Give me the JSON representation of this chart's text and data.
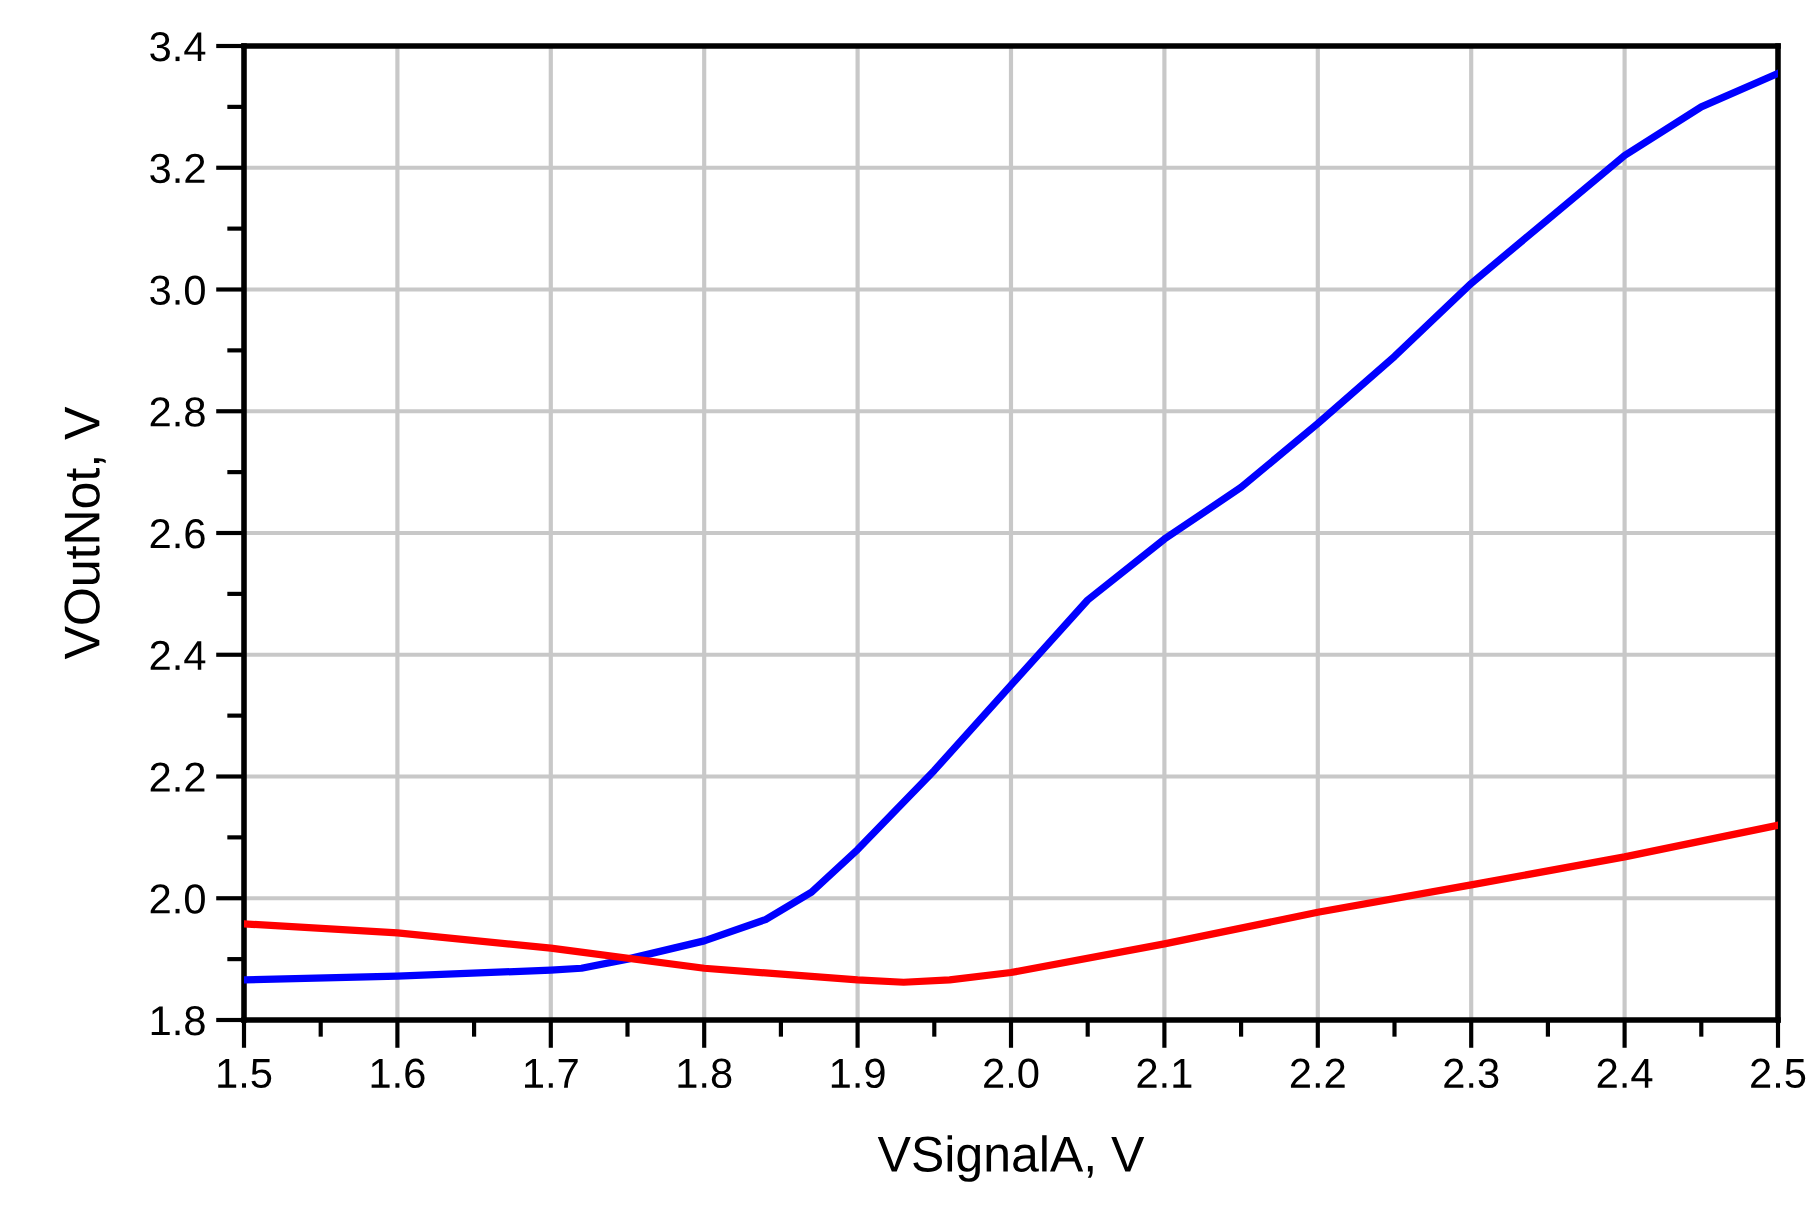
{
  "chart_data": {
    "type": "line",
    "xlabel": "VSignalA, V",
    "ylabel": "VOutNot, V",
    "xlim": [
      1.5,
      2.5
    ],
    "ylim": [
      1.8,
      3.4
    ],
    "xticks": [
      1.5,
      1.6,
      1.7,
      1.8,
      1.9,
      {
        "value": 2.0,
        "label": "2.0"
      },
      2.1,
      2.2,
      2.3,
      2.4,
      2.5
    ],
    "yticks": [
      1.8,
      {
        "value": 2.0,
        "label": "2.0"
      },
      2.2,
      2.4,
      2.6,
      2.8,
      {
        "value": 3.0,
        "label": "3.0"
      },
      3.2,
      3.4
    ],
    "grid": true,
    "legend": false,
    "marker": "none",
    "line_style": "solid",
    "series": [
      {
        "color": "#0000ff",
        "x": [
          1.5,
          1.6,
          1.7,
          1.72,
          1.75,
          1.8,
          1.84,
          1.87,
          1.9,
          1.95,
          2.0,
          2.05,
          2.1,
          2.15,
          2.2,
          2.25,
          2.3,
          2.35,
          2.4,
          2.45,
          2.5
        ],
        "values": [
          1.866,
          1.872,
          1.882,
          1.885,
          1.9,
          1.93,
          1.965,
          2.01,
          2.08,
          2.21,
          2.35,
          2.49,
          2.59,
          2.675,
          2.78,
          2.89,
          3.01,
          3.115,
          3.22,
          3.3,
          3.355
        ]
      },
      {
        "color": "#ff0000",
        "x": [
          1.5,
          1.6,
          1.7,
          1.8,
          1.9,
          1.93,
          1.96,
          2.0,
          2.1,
          2.2,
          2.3,
          2.4,
          2.5
        ],
        "values": [
          1.958,
          1.943,
          1.918,
          1.885,
          1.866,
          1.862,
          1.866,
          1.878,
          1.925,
          1.977,
          2.022,
          2.068,
          2.12
        ]
      }
    ]
  }
}
